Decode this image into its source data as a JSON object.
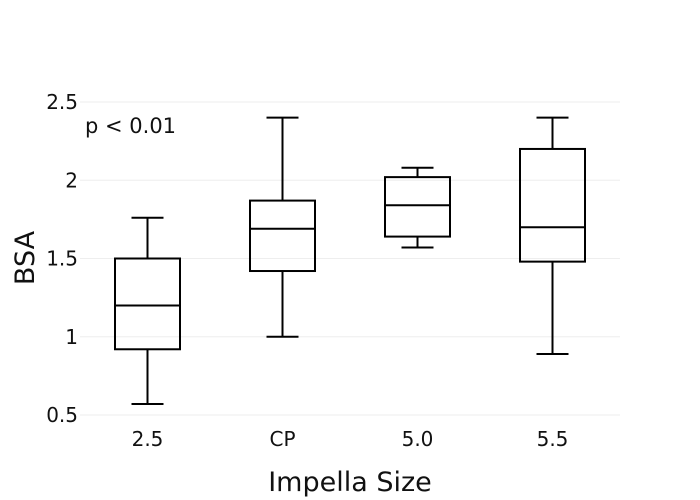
{
  "chart_data": {
    "type": "box",
    "xlabel": "Impella Size",
    "ylabel": "BSA",
    "ylim": [
      0.5,
      2.5
    ],
    "yticks": [
      "0.5",
      "1",
      "1.5",
      "2",
      "2.5"
    ],
    "grid": "horizontal",
    "annotation": "p < 0.01",
    "categories": [
      "2.5",
      "CP",
      "5.0",
      "5.5"
    ],
    "boxes": [
      {
        "category": "2.5",
        "min": 0.57,
        "q1": 0.92,
        "median": 1.2,
        "q3": 1.5,
        "max": 1.76
      },
      {
        "category": "CP",
        "min": 1.0,
        "q1": 1.42,
        "median": 1.69,
        "q3": 1.87,
        "max": 2.4
      },
      {
        "category": "5.0",
        "min": 1.57,
        "q1": 1.64,
        "median": 1.84,
        "q3": 2.02,
        "max": 2.08
      },
      {
        "category": "5.5",
        "min": 0.89,
        "q1": 1.48,
        "median": 1.7,
        "q3": 2.2,
        "max": 2.4
      }
    ],
    "colors": {
      "box_stroke": "#000000",
      "grid": "#eeeeee",
      "text": "#111111"
    }
  }
}
